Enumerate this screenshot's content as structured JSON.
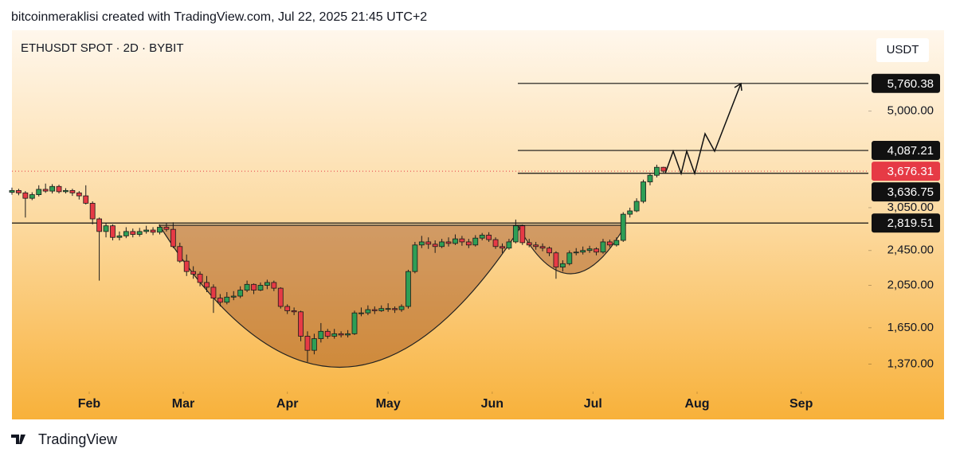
{
  "chart_data": {
    "type": "candlestick",
    "caption": "bitcoinmeraklisi created with TradingView.com, Jul 22, 2025 21:45 UTC+2",
    "title": "ETHUSDT SPOT · 2D · BYBIT",
    "y_unit": "USDT",
    "footer": "TradingView",
    "log": true,
    "up_color": "#2e9e55",
    "down_color": "#e63a45",
    "xlim": [
      8,
      263
    ],
    "xticks": [
      {
        "value": 31,
        "label": "Feb"
      },
      {
        "value": 59,
        "label": "Mar"
      },
      {
        "value": 90,
        "label": "Apr"
      },
      {
        "value": 120,
        "label": "May"
      },
      {
        "value": 151,
        "label": "Jun"
      },
      {
        "value": 181,
        "label": "Jul"
      },
      {
        "value": 212,
        "label": "Aug"
      },
      {
        "value": 243,
        "label": "Sep"
      }
    ],
    "ylim": [
      1200,
      7500
    ],
    "yticks": [
      {
        "value": 5000,
        "label": "5,000.00"
      },
      {
        "value": 3050,
        "label": "3,050.00"
      },
      {
        "value": 2450,
        "label": "2,450.00"
      },
      {
        "value": 2050,
        "label": "2,050.00"
      },
      {
        "value": 1650,
        "label": "1,650.00"
      },
      {
        "value": 1370,
        "label": "1,370.00"
      }
    ],
    "price_levels": [
      {
        "value": 5760.38,
        "label": "5,760.38"
      },
      {
        "value": 4087.21,
        "label": "4,087.21"
      },
      {
        "value": 3636.75,
        "label": "3,636.75"
      },
      {
        "value": 2819.51,
        "label": "2,819.51"
      }
    ],
    "current_price": {
      "value": 3676.31,
      "label": "3,676.31"
    },
    "candles": [
      [
        8,
        3300,
        3380,
        3260,
        3330
      ],
      [
        10,
        3330,
        3360,
        3250,
        3290
      ],
      [
        12,
        3290,
        3320,
        2900,
        3200
      ],
      [
        14,
        3200,
        3300,
        3170,
        3260
      ],
      [
        16,
        3260,
        3420,
        3230,
        3350
      ],
      [
        18,
        3350,
        3450,
        3290,
        3320
      ],
      [
        20,
        3320,
        3440,
        3280,
        3400
      ],
      [
        22,
        3400,
        3430,
        3280,
        3310
      ],
      [
        24,
        3310,
        3370,
        3280,
        3330
      ],
      [
        26,
        3330,
        3360,
        3240,
        3290
      ],
      [
        28,
        3290,
        3320,
        3180,
        3240
      ],
      [
        30,
        3240,
        3420,
        3100,
        3120
      ],
      [
        32,
        3120,
        3150,
        2800,
        2880
      ],
      [
        34,
        2880,
        2900,
        2100,
        2700
      ],
      [
        36,
        2700,
        2820,
        2620,
        2780
      ],
      [
        38,
        2780,
        2800,
        2580,
        2620
      ],
      [
        40,
        2620,
        2700,
        2580,
        2640
      ],
      [
        42,
        2640,
        2760,
        2610,
        2700
      ],
      [
        44,
        2700,
        2740,
        2620,
        2660
      ],
      [
        46,
        2660,
        2750,
        2630,
        2700
      ],
      [
        48,
        2700,
        2780,
        2670,
        2720
      ],
      [
        50,
        2720,
        2760,
        2650,
        2690
      ],
      [
        52,
        2690,
        2800,
        2660,
        2760
      ],
      [
        54,
        2760,
        2820,
        2700,
        2730
      ],
      [
        56,
        2730,
        2830,
        2480,
        2500
      ],
      [
        58,
        2500,
        2550,
        2300,
        2320
      ],
      [
        60,
        2320,
        2400,
        2150,
        2200
      ],
      [
        62,
        2200,
        2260,
        2120,
        2170
      ],
      [
        64,
        2170,
        2200,
        2040,
        2080
      ],
      [
        66,
        2080,
        2150,
        1980,
        2030
      ],
      [
        68,
        2030,
        2060,
        1780,
        1920
      ],
      [
        70,
        1920,
        1960,
        1840,
        1880
      ],
      [
        72,
        1880,
        1980,
        1860,
        1930
      ],
      [
        74,
        1930,
        1990,
        1900,
        1940
      ],
      [
        76,
        1940,
        2040,
        1920,
        2000
      ],
      [
        78,
        2000,
        2100,
        1980,
        2060
      ],
      [
        80,
        2060,
        2070,
        1960,
        2000
      ],
      [
        82,
        2000,
        2080,
        1990,
        2050
      ],
      [
        84,
        2050,
        2110,
        2010,
        2080
      ],
      [
        86,
        2080,
        2100,
        1990,
        2020
      ],
      [
        88,
        2020,
        2030,
        1820,
        1840
      ],
      [
        90,
        1840,
        1860,
        1770,
        1800
      ],
      [
        92,
        1800,
        1830,
        1760,
        1790
      ],
      [
        94,
        1790,
        1800,
        1540,
        1580
      ],
      [
        96,
        1580,
        1620,
        1385,
        1470
      ],
      [
        98,
        1470,
        1600,
        1440,
        1560
      ],
      [
        100,
        1560,
        1690,
        1530,
        1620
      ],
      [
        102,
        1620,
        1640,
        1560,
        1580
      ],
      [
        104,
        1580,
        1640,
        1560,
        1600
      ],
      [
        106,
        1600,
        1620,
        1570,
        1590
      ],
      [
        108,
        1590,
        1630,
        1570,
        1600
      ],
      [
        110,
        1600,
        1800,
        1590,
        1780
      ],
      [
        112,
        1780,
        1830,
        1750,
        1780
      ],
      [
        114,
        1780,
        1850,
        1760,
        1810
      ],
      [
        116,
        1810,
        1840,
        1770,
        1800
      ],
      [
        118,
        1800,
        1850,
        1790,
        1820
      ],
      [
        120,
        1820,
        1870,
        1790,
        1820
      ],
      [
        122,
        1820,
        1840,
        1780,
        1810
      ],
      [
        124,
        1810,
        1860,
        1790,
        1840
      ],
      [
        126,
        1840,
        2220,
        1820,
        2200
      ],
      [
        128,
        2200,
        2560,
        2180,
        2520
      ],
      [
        130,
        2520,
        2640,
        2480,
        2560
      ],
      [
        132,
        2560,
        2620,
        2470,
        2530
      ],
      [
        134,
        2530,
        2580,
        2420,
        2500
      ],
      [
        136,
        2500,
        2600,
        2480,
        2560
      ],
      [
        138,
        2560,
        2620,
        2500,
        2540
      ],
      [
        140,
        2540,
        2660,
        2520,
        2600
      ],
      [
        142,
        2600,
        2640,
        2510,
        2560
      ],
      [
        144,
        2560,
        2600,
        2480,
        2520
      ],
      [
        146,
        2520,
        2650,
        2500,
        2610
      ],
      [
        148,
        2610,
        2680,
        2580,
        2650
      ],
      [
        150,
        2650,
        2690,
        2560,
        2590
      ],
      [
        152,
        2590,
        2620,
        2470,
        2500
      ],
      [
        154,
        2500,
        2540,
        2420,
        2480
      ],
      [
        156,
        2480,
        2600,
        2460,
        2560
      ],
      [
        158,
        2560,
        2870,
        2540,
        2780
      ],
      [
        160,
        2780,
        2800,
        2520,
        2550
      ],
      [
        162,
        2550,
        2600,
        2490,
        2520
      ],
      [
        164,
        2520,
        2560,
        2460,
        2500
      ],
      [
        166,
        2500,
        2540,
        2440,
        2480
      ],
      [
        168,
        2480,
        2500,
        2380,
        2420
      ],
      [
        170,
        2420,
        2440,
        2120,
        2250
      ],
      [
        172,
        2250,
        2330,
        2200,
        2290
      ],
      [
        174,
        2290,
        2450,
        2270,
        2420
      ],
      [
        176,
        2420,
        2480,
        2390,
        2430
      ],
      [
        178,
        2430,
        2500,
        2400,
        2450
      ],
      [
        180,
        2450,
        2510,
        2420,
        2470
      ],
      [
        182,
        2470,
        2490,
        2390,
        2430
      ],
      [
        184,
        2430,
        2600,
        2410,
        2560
      ],
      [
        186,
        2560,
        2590,
        2490,
        2520
      ],
      [
        188,
        2520,
        2620,
        2500,
        2580
      ],
      [
        190,
        2580,
        2980,
        2560,
        2950
      ],
      [
        192,
        2950,
        3050,
        2900,
        3000
      ],
      [
        194,
        3000,
        3200,
        2980,
        3150
      ],
      [
        196,
        3150,
        3520,
        3120,
        3480
      ],
      [
        198,
        3480,
        3640,
        3420,
        3600
      ],
      [
        200,
        3600,
        3800,
        3560,
        3750
      ],
      [
        202,
        3750,
        3760,
        3640,
        3676.31
      ]
    ]
  }
}
